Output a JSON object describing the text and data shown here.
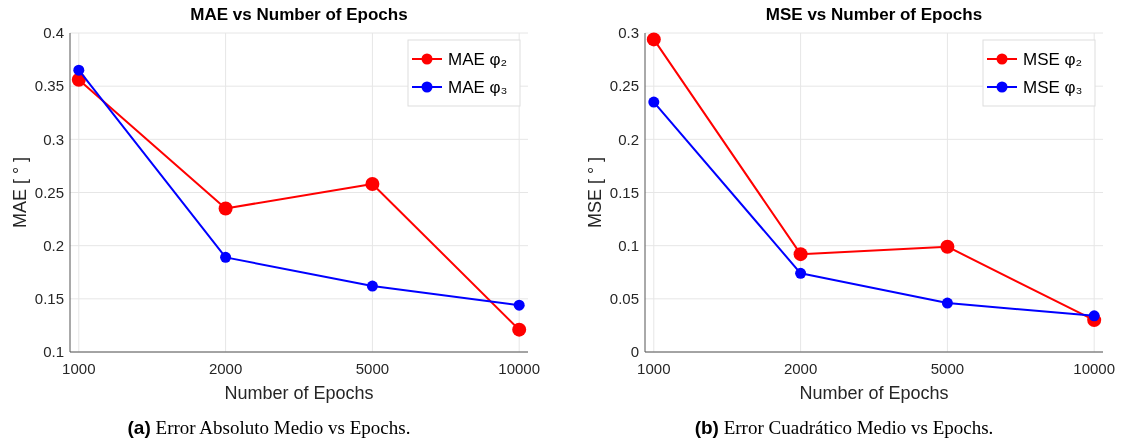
{
  "chart_data": [
    {
      "type": "line",
      "title": "MAE vs Number of Epochs",
      "xlabel": "Number of Epochs",
      "ylabel": "MAE [ ° ]",
      "categories": [
        "1000",
        "2000",
        "5000",
        "10000"
      ],
      "series": [
        {
          "name": "MAE φ₂",
          "color": "#ff0000",
          "values": [
            0.356,
            0.235,
            0.258,
            0.121
          ]
        },
        {
          "name": "MAE φ₃",
          "color": "#0000ff",
          "values": [
            0.365,
            0.189,
            0.162,
            0.144
          ]
        }
      ],
      "ylim": [
        0.1,
        0.4
      ],
      "yticks": [
        0.1,
        0.15,
        0.2,
        0.25,
        0.3,
        0.35,
        0.4
      ],
      "grid": true,
      "legend": "top right",
      "marker": "circle",
      "line_style": "solid",
      "annotations": [
        "(a) Error Absoluto Medio vs Epochs."
      ]
    },
    {
      "type": "line",
      "title": "MSE vs Number of Epochs",
      "xlabel": "Number of Epochs",
      "ylabel": "MSE [ ° ]",
      "categories": [
        "1000",
        "2000",
        "5000",
        "10000"
      ],
      "series": [
        {
          "name": "MSE φ₂",
          "color": "#ff0000",
          "values": [
            0.294,
            0.092,
            0.099,
            0.03
          ]
        },
        {
          "name": "MSE φ₃",
          "color": "#0000ff",
          "values": [
            0.235,
            0.074,
            0.046,
            0.034
          ]
        }
      ],
      "ylim": [
        0,
        0.3
      ],
      "yticks": [
        0,
        0.05,
        0.1,
        0.15,
        0.2,
        0.25,
        0.3
      ],
      "grid": true,
      "legend": "top right",
      "marker": "circle",
      "line_style": "solid",
      "annotations": [
        "(b) Error Cuadrático Medio vs Epochs."
      ]
    }
  ]
}
